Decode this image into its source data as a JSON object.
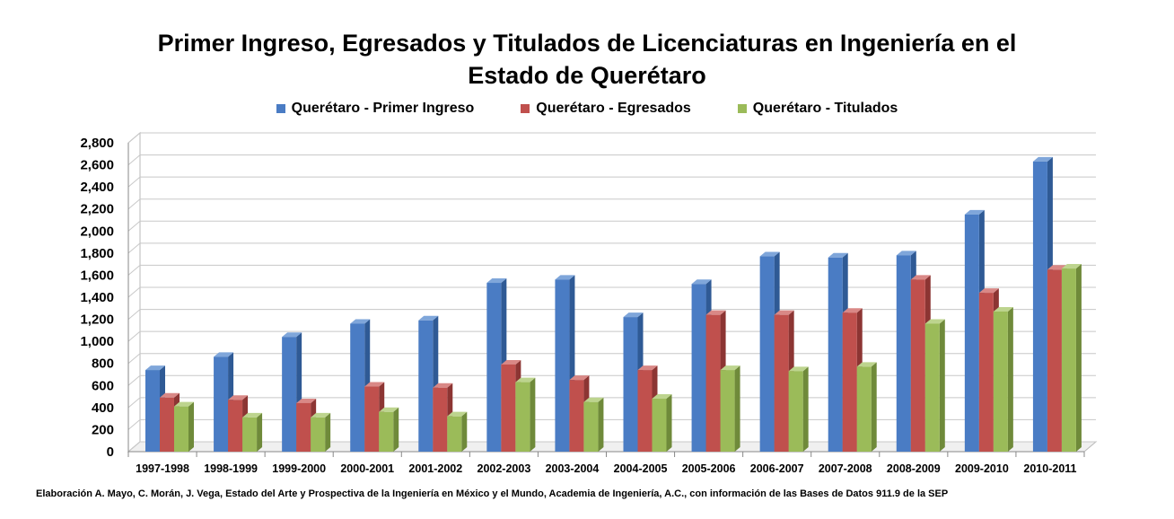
{
  "chart_data": {
    "type": "bar",
    "title_lines": [
      "Primer Ingreso, Egresados y Titulados de Licenciaturas en Ingeniería en el",
      "Estado de Querétaro"
    ],
    "categories": [
      "1997-1998",
      "1998-1999",
      "1999-2000",
      "2000-2001",
      "2001-2002",
      "2002-2003",
      "2003-2004",
      "2004-2005",
      "2005-2006",
      "2006-2007",
      "2007-2008",
      "2008-2009",
      "2009-2010",
      "2010-2011"
    ],
    "series": [
      {
        "name": "Querétaro - Primer Ingreso",
        "color": "#4A7CC4",
        "top_color": "#7FA6DA",
        "side_color": "#2F5A95",
        "values": [
          740,
          860,
          1040,
          1160,
          1190,
          1530,
          1560,
          1220,
          1520,
          1770,
          1760,
          1780,
          2150,
          2630
        ]
      },
      {
        "name": "Querétaro - Egresados",
        "color": "#C0504D",
        "top_color": "#D98886",
        "side_color": "#8C3533",
        "values": [
          490,
          470,
          440,
          590,
          580,
          790,
          650,
          740,
          1240,
          1240,
          1260,
          1560,
          1440,
          1650
        ]
      },
      {
        "name": "Querétaro - Titulados",
        "color": "#9BBB59",
        "top_color": "#BDD48E",
        "side_color": "#6F8A3A",
        "values": [
          410,
          310,
          310,
          360,
          320,
          630,
          450,
          480,
          740,
          730,
          770,
          1160,
          1270,
          1660
        ]
      }
    ],
    "ylim": [
      0,
      2800
    ],
    "yticks": [
      0,
      200,
      400,
      600,
      800,
      1000,
      1200,
      1400,
      1600,
      1800,
      2000,
      2200,
      2400,
      2600,
      2800
    ],
    "ytick_labels": [
      "0",
      "200",
      "400",
      "600",
      "800",
      "1,000",
      "1,200",
      "1,400",
      "1,600",
      "1,800",
      "2,000",
      "2,200",
      "2,400",
      "2,600",
      "2,800"
    ],
    "grid": true,
    "legend_position": "top",
    "three_d": true
  },
  "source_note": "Elaboración A. Mayo, C. Morán, J. Vega, Estado del Arte y Prospectiva de la Ingeniería en México y el Mundo, Academia de Ingeniería, A.C., con información de las Bases de Datos  911.9  de la SEP"
}
